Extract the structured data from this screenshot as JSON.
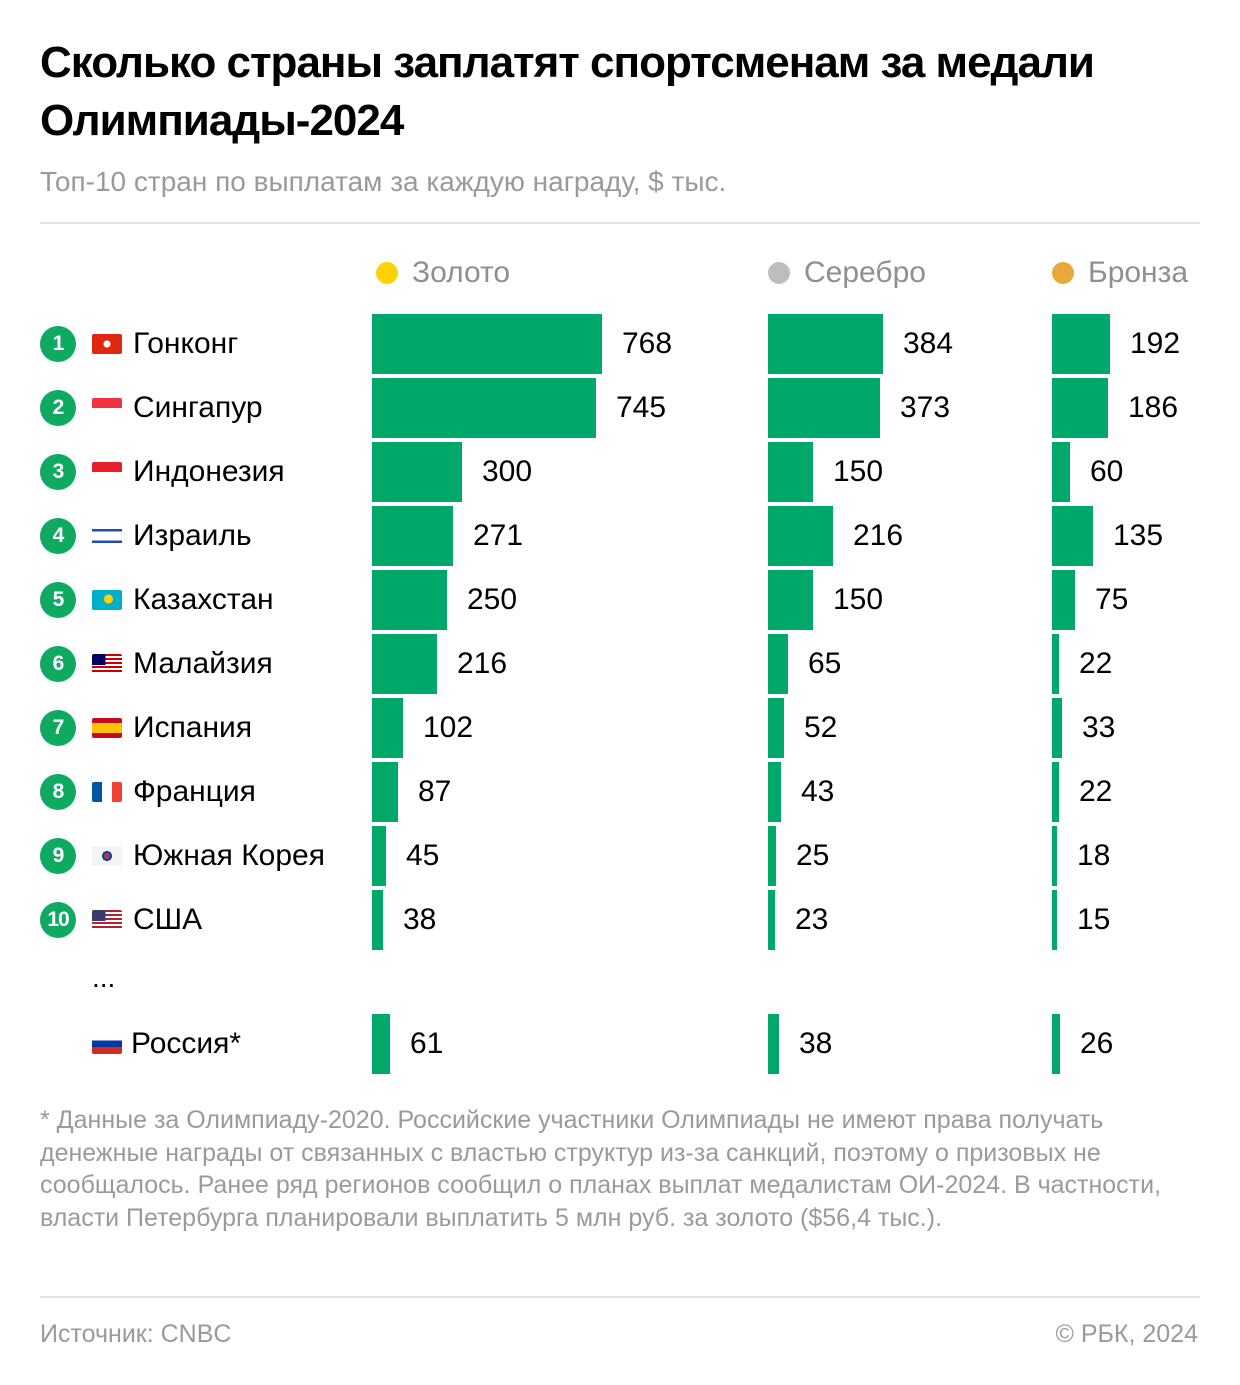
{
  "header": {
    "title": "Сколько страны заплатят спортсменам за медали Олимпиады-2024",
    "subtitle": "Топ-10 стран по выплатам за каждую награду, $ тыс."
  },
  "legend": [
    {
      "label": "Золото",
      "color": "#ffd200"
    },
    {
      "label": "Серебро",
      "color": "#bdbdbd"
    },
    {
      "label": "Бронза",
      "color": "#eaa83a"
    }
  ],
  "bar_color": "#00a96a",
  "rank_color": "#0faa61",
  "chart_data": {
    "type": "bar",
    "orientation": "horizontal",
    "title": "Сколько страны заплатят спортсменам за медали Олимпиады-2024",
    "subtitle": "Топ-10 стран по выплатам за каждую награду, $ тыс.",
    "unit": "$ тыс.",
    "categories": [
      "Гонконг",
      "Сингапур",
      "Индонезия",
      "Израиль",
      "Казахстан",
      "Малайзия",
      "Испания",
      "Франция",
      "Южная Корея",
      "США",
      "Россия*"
    ],
    "ranks": [
      "1",
      "2",
      "3",
      "4",
      "5",
      "6",
      "7",
      "8",
      "9",
      "10",
      ""
    ],
    "flags": [
      "flag-hong-kong",
      "flag-singapore",
      "flag-indonesia",
      "flag-israel",
      "flag-kazakhstan",
      "flag-malaysia",
      "flag-spain",
      "flag-france",
      "flag-south-korea",
      "flag-usa",
      "flag-russia"
    ],
    "series": [
      {
        "name": "Золото",
        "values": [
          768,
          745,
          300,
          271,
          250,
          216,
          102,
          87,
          45,
          38,
          61
        ]
      },
      {
        "name": "Серебро",
        "values": [
          384,
          373,
          150,
          216,
          150,
          65,
          52,
          43,
          25,
          23,
          38
        ]
      },
      {
        "name": "Бронза",
        "values": [
          192,
          186,
          60,
          135,
          75,
          22,
          33,
          22,
          18,
          15,
          26
        ]
      }
    ],
    "separator": "...",
    "grid": false,
    "legend_position": "top"
  },
  "footnote": "* Данные за Олимпиаду-2020. Российские участники Олимпиады не имеют права получать денежные награды от связанных с властью структур из-за санкций, поэтому о призовых не сообщалось. Ранее ряд регионов сообщил о планах выплат медалистам ОИ-2024. В частности, власти Петербурга планировали выплатить 5 млн руб. за золото ($56,4 тыс.).",
  "footer": {
    "source": "Источник: CNBC",
    "copyright": "© РБК, 2024"
  }
}
